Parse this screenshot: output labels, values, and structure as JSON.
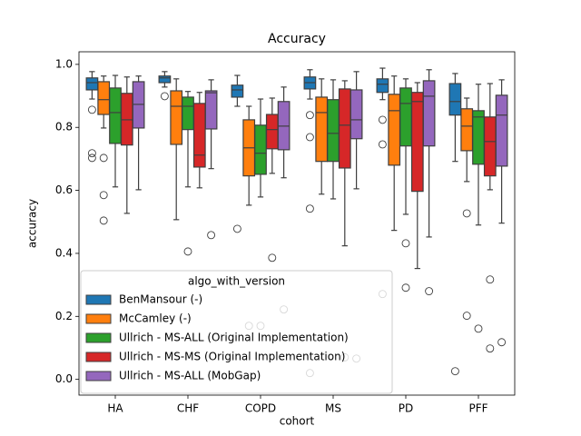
{
  "chart_data": {
    "type": "box",
    "title": "Accuracy",
    "xlabel": "cohort",
    "ylabel": "accuracy",
    "categories": [
      "HA",
      "CHF",
      "COPD",
      "MS",
      "PD",
      "PFF"
    ],
    "ylim": [
      -0.05,
      1.04
    ],
    "yticks": [
      {
        "value": 0,
        "label": "0.0"
      },
      0.2,
      0.4,
      0.6,
      0.8,
      {
        "value": 1,
        "label": "1.0"
      }
    ],
    "legend_title": "algo_with_version",
    "legend_loc": "lower left",
    "series": [
      {
        "name": "BenMansour (-)",
        "color": "#1f77b4",
        "whislo": [
          0.89,
          0.928,
          0.867,
          0.89,
          0.888,
          0.692
        ],
        "q1": [
          0.919,
          0.942,
          0.896,
          0.922,
          0.911,
          0.839
        ],
        "med": [
          0.942,
          0.957,
          0.919,
          0.942,
          0.937,
          0.882
        ],
        "q3": [
          0.957,
          0.963,
          0.934,
          0.96,
          0.954,
          0.939
        ],
        "whishi": [
          0.977,
          0.977,
          0.965,
          0.983,
          0.988,
          0.971
        ],
        "fliers": [
          [
            0.856,
            0.718,
            0.703
          ],
          [
            0.899
          ],
          [
            0.478
          ],
          [
            0.839,
            0.769,
            0.542,
            0.02
          ],
          [
            0.824,
            0.746,
            0.271
          ],
          [
            0.026
          ]
        ]
      },
      {
        "name": "McCamley (-)",
        "color": "#ff7f0e",
        "whislo": [
          0.798,
          0.507,
          0.553,
          0.588,
          0.473,
          0.628
        ],
        "q1": [
          0.841,
          0.746,
          0.646,
          0.692,
          0.68,
          0.726
        ],
        "med": [
          0.888,
          0.867,
          0.735,
          0.847,
          0.853,
          0.804
        ],
        "q3": [
          0.945,
          0.916,
          0.824,
          0.896,
          0.905,
          0.859
        ],
        "whishi": [
          0.963,
          0.954,
          0.867,
          0.954,
          0.963,
          0.893
        ],
        "fliers": [
          [
            0.703,
            0.585,
            0.504
          ],
          [],
          [
            0.17
          ],
          [],
          [],
          [
            0.527,
            0.202
          ]
        ]
      },
      {
        "name": "Ullrich - MS-ALL (Original Implementation)",
        "color": "#2ca02c",
        "whislo": [
          0.611,
          0.611,
          0.579,
          0.573,
          0.524,
          0.49
        ],
        "q1": [
          0.749,
          0.793,
          0.651,
          0.692,
          0.741,
          0.683
        ],
        "med": [
          0.847,
          0.867,
          0.718,
          0.781,
          0.876,
          0.833
        ],
        "q3": [
          0.925,
          0.896,
          0.807,
          0.888,
          0.925,
          0.853
        ],
        "whishi": [
          0.965,
          0.914,
          0.89,
          0.951,
          0.954,
          0.937
        ],
        "fliers": [
          [],
          [
            0.406
          ],
          [
            0.17
          ],
          [],
          [
            0.432,
            0.291
          ],
          [
            0.161
          ]
        ]
      },
      {
        "name": "Ullrich - MS-MS (Original Implementation)",
        "color": "#d62728",
        "whislo": [
          0.527,
          0.608,
          0.654,
          0.424,
          0.352,
          0.602
        ],
        "q1": [
          0.744,
          0.674,
          0.732,
          0.671,
          0.597,
          0.646
        ],
        "med": [
          0.824,
          0.712,
          0.793,
          0.807,
          0.882,
          0.755
        ],
        "q3": [
          0.908,
          0.876,
          0.841,
          0.922,
          0.911,
          0.833
        ],
        "whishi": [
          0.96,
          0.911,
          0.893,
          0.948,
          0.942,
          0.939
        ],
        "fliers": [
          [],
          [],
          [
            0.386
          ],
          [
            0.07
          ],
          [],
          [
            0.317,
            0.098
          ]
        ]
      },
      {
        "name": "Ullrich - MS-ALL (MobGap)",
        "color": "#9467bd",
        "whislo": [
          0.602,
          0.669,
          0.64,
          0.605,
          0.452,
          0.496
        ],
        "q1": [
          0.798,
          0.795,
          0.729,
          0.764,
          0.741,
          0.677
        ],
        "med": [
          0.873,
          0.91,
          0.804,
          0.824,
          0.899,
          0.839
        ],
        "q3": [
          0.945,
          0.916,
          0.882,
          0.919,
          0.948,
          0.902
        ],
        "whishi": [
          0.963,
          0.951,
          0.928,
          0.977,
          0.983,
          0.951
        ],
        "fliers": [
          [],
          [
            0.458
          ],
          [
            0.222
          ],
          [
            0.066
          ],
          [
            0.28
          ],
          [
            0.118
          ]
        ]
      }
    ]
  }
}
